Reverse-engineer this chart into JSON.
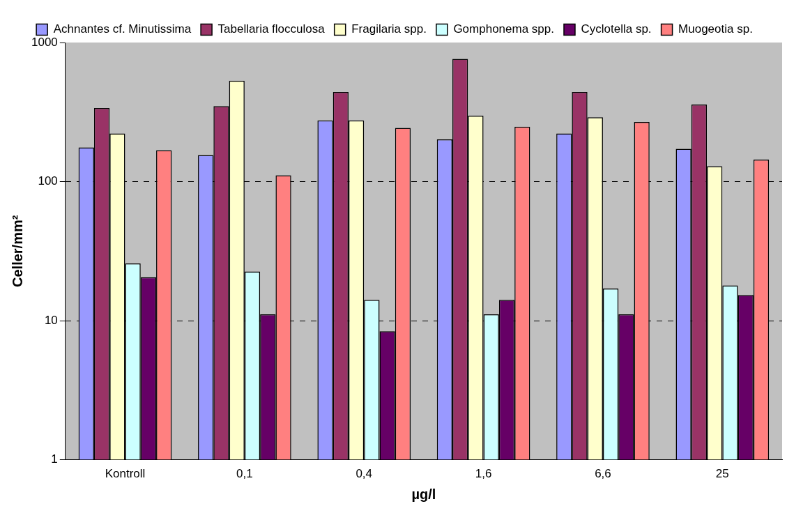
{
  "chart_data": {
    "type": "bar",
    "categories": [
      "Kontroll",
      "0,1",
      "0,4",
      "1,6",
      "6,6",
      "25"
    ],
    "xlabel": "µg/l",
    "ylabel": "Celler/mm²",
    "log": true,
    "ylim": [
      1,
      1000
    ],
    "yticks": [
      1,
      10,
      100,
      1000
    ],
    "grid": "y",
    "legend": "top",
    "series": [
      {
        "name": "Achnantes cf. Minutissima",
        "color": "#9999ff",
        "values": [
          176,
          155,
          275,
          201,
          222,
          172
        ]
      },
      {
        "name": "Tabellaria flocculosa",
        "color": "#993366",
        "values": [
          338,
          349,
          441,
          763,
          441,
          358
        ]
      },
      {
        "name": "Fragilaria spp.",
        "color": "#ffffcc",
        "values": [
          222,
          531,
          275,
          298,
          290,
          129
        ]
      },
      {
        "name": "Gomphonema spp.",
        "color": "#ccffff",
        "values": [
          25.8,
          22.6,
          14.1,
          11.1,
          17.0,
          17.9
        ]
      },
      {
        "name": "Cyclotella sp.",
        "color": "#660066",
        "values": [
          20.5,
          11.1,
          8.4,
          14.1,
          11.1,
          15.3
        ]
      },
      {
        "name": "Muogeotia sp.",
        "color": "#ff8080",
        "values": [
          168,
          111,
          243,
          248,
          268,
          144
        ]
      }
    ]
  }
}
